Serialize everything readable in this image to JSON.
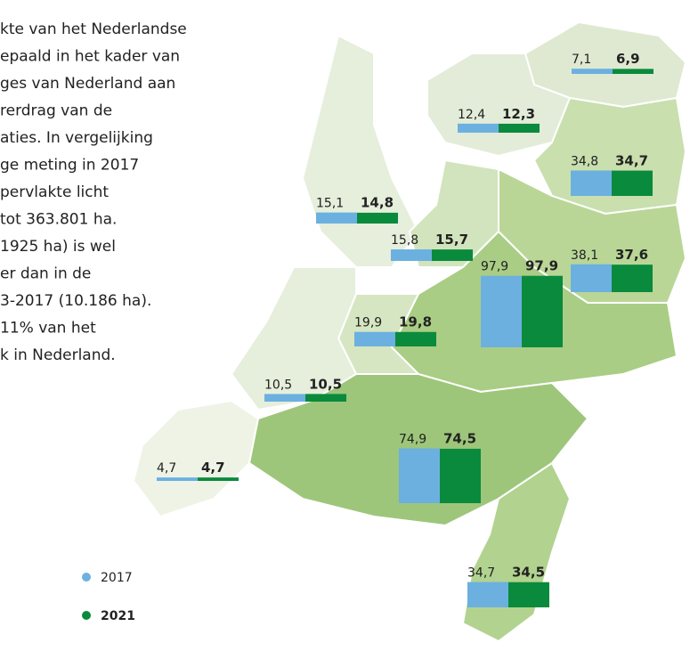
{
  "text": [
    "kte van het Nederlandse",
    "epaald in het kader van",
    "ges van Nederland aan",
    "rerdrag van de",
    "aties. In vergelijking",
    "ge meting in 2017",
    "pervlakte licht",
    "tot 363.801 ha.",
    "1925 ha) is wel",
    "er dan in de",
    "3-2017 (10.186 ha).",
    "11% van het",
    "k in Nederland."
  ],
  "legend": [
    {
      "name": "2017",
      "color": "#6cb0e0"
    },
    {
      "name": "2021",
      "color": "#0a8a3c"
    }
  ],
  "regions": [
    {
      "values": [
        7.1,
        6.9
      ],
      "value_labels": [
        "7,1",
        "6,9"
      ]
    },
    {
      "values": [
        12.4,
        12.3
      ],
      "value_labels": [
        "12,4",
        "12,3"
      ]
    },
    {
      "values": [
        34.8,
        34.7
      ],
      "value_labels": [
        "34,8",
        "34,7"
      ]
    },
    {
      "values": [
        15.1,
        14.8
      ],
      "value_labels": [
        "15,1",
        "14,8"
      ]
    },
    {
      "values": [
        15.8,
        15.7
      ],
      "value_labels": [
        "15,8",
        "15,7"
      ]
    },
    {
      "values": [
        38.1,
        37.6
      ],
      "value_labels": [
        "38,1",
        "37,6"
      ]
    },
    {
      "values": [
        97.9,
        97.9
      ],
      "value_labels": [
        "97,9",
        "97,9"
      ]
    },
    {
      "values": [
        19.9,
        19.8
      ],
      "value_labels": [
        "19,9",
        "19,8"
      ]
    },
    {
      "values": [
        10.5,
        10.5
      ],
      "value_labels": [
        "10,5",
        "10,5"
      ]
    },
    {
      "values": [
        4.7,
        4.7
      ],
      "value_labels": [
        "4,7",
        "4,7"
      ]
    },
    {
      "values": [
        74.9,
        74.5
      ],
      "value_labels": [
        "74,9",
        "74,5"
      ]
    },
    {
      "values": [
        34.7,
        34.5
      ],
      "value_labels": [
        "34,7",
        "34,5"
      ]
    }
  ]
}
